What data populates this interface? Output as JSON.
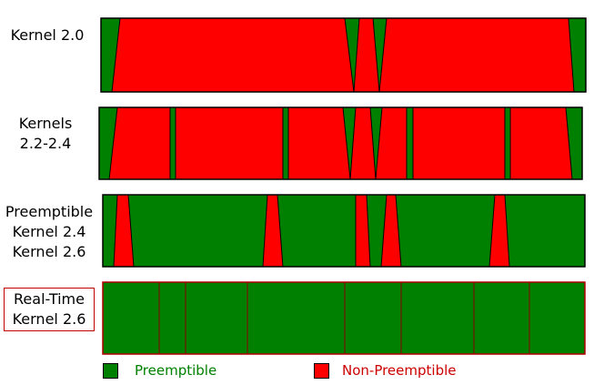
{
  "colors": {
    "preemptible": "#008000",
    "non_preemptible": "#ff0000",
    "outline": "#000000",
    "label_box_border": "#c00000",
    "legend_preemptible_text": "#008000",
    "legend_non_preemptible_text": "#cc0000"
  },
  "rows": [
    {
      "id": "kernel-2-0",
      "label_lines": [
        "Kernel 2.0"
      ],
      "boxed": false,
      "non_preemptible_fraction": 0.91
    },
    {
      "id": "kernels-2-2-2-4",
      "label_lines": [
        "Kernels",
        "2.2-2.4"
      ],
      "boxed": false,
      "non_preemptible_fraction": 0.87
    },
    {
      "id": "preemptible-2-4-2-6",
      "label_lines": [
        "Preemptible",
        "Kernel 2.4",
        "Kernel 2.6"
      ],
      "boxed": false,
      "non_preemptible_fraction": 0.2
    },
    {
      "id": "real-time-2-6",
      "label_lines": [
        "Real-Time",
        "Kernel 2.6"
      ],
      "boxed": true,
      "non_preemptible_fraction": 0
    }
  ],
  "legend": {
    "preemptible_label": "Preemptible",
    "non_preemptible_label": "Non-Preemptible"
  }
}
